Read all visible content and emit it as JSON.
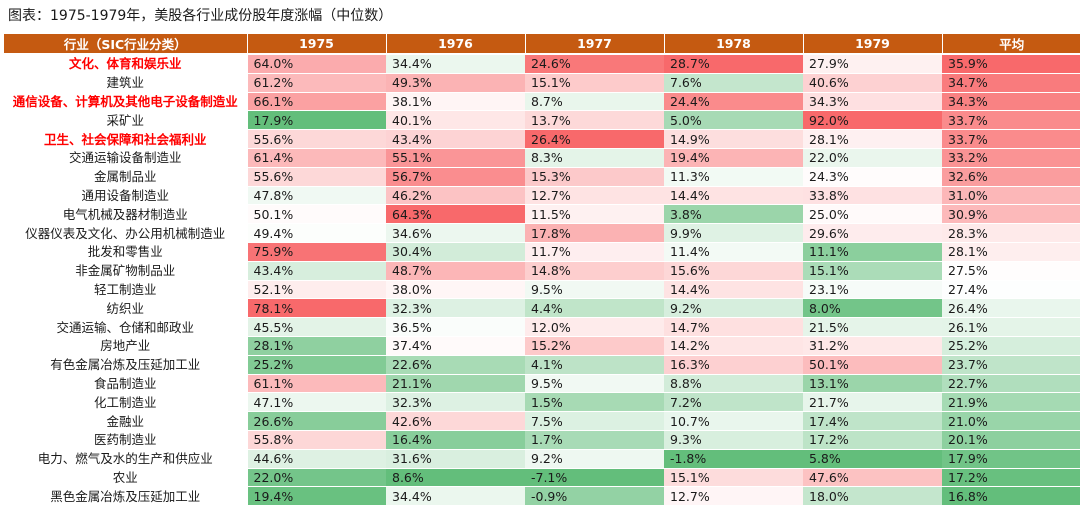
{
  "title": "图表：1975-1979年，美股各行业成份股年度涨幅（中位数）",
  "header": {
    "columns": [
      "行业（SIC行业分类）",
      "1975",
      "1976",
      "1977",
      "1978",
      "1979",
      "平均"
    ]
  },
  "colors": {
    "header_bg": "#c55a11",
    "highlight_text": "#ff0000",
    "high_cell": "#f8696b",
    "low_cell": "#63be7b"
  },
  "rows": [
    {
      "industry": "文化、体育和娱乐业",
      "highlight": true,
      "cells": [
        {
          "v": 64.0,
          "t": "64.0%"
        },
        {
          "v": 34.4,
          "t": "34.4%"
        },
        {
          "v": 24.6,
          "t": "24.6%"
        },
        {
          "v": 28.7,
          "t": "28.7%"
        },
        {
          "v": 27.9,
          "t": "27.9%"
        },
        {
          "v": 35.9,
          "t": "35.9%"
        }
      ]
    },
    {
      "industry": "建筑业",
      "highlight": false,
      "cells": [
        {
          "v": 61.2,
          "t": "61.2%"
        },
        {
          "v": 49.3,
          "t": "49.3%"
        },
        {
          "v": 15.1,
          "t": "15.1%"
        },
        {
          "v": 7.6,
          "t": "7.6%"
        },
        {
          "v": 40.6,
          "t": "40.6%"
        },
        {
          "v": 34.7,
          "t": "34.7%"
        }
      ]
    },
    {
      "industry": "通信设备、计算机及其他电子设备制造业",
      "highlight": true,
      "cells": [
        {
          "v": 66.1,
          "t": "66.1%"
        },
        {
          "v": 38.1,
          "t": "38.1%"
        },
        {
          "v": 8.7,
          "t": "8.7%"
        },
        {
          "v": 24.4,
          "t": "24.4%"
        },
        {
          "v": 34.3,
          "t": "34.3%"
        },
        {
          "v": 34.3,
          "t": "34.3%"
        }
      ]
    },
    {
      "industry": "采矿业",
      "highlight": false,
      "cells": [
        {
          "v": 17.9,
          "t": "17.9%"
        },
        {
          "v": 40.1,
          "t": "40.1%"
        },
        {
          "v": 13.7,
          "t": "13.7%"
        },
        {
          "v": 5.0,
          "t": "5.0%"
        },
        {
          "v": 92.0,
          "t": "92.0%"
        },
        {
          "v": 33.7,
          "t": "33.7%"
        }
      ]
    },
    {
      "industry": "卫生、社会保障和社会福利业",
      "highlight": true,
      "cells": [
        {
          "v": 55.6,
          "t": "55.6%"
        },
        {
          "v": 43.4,
          "t": "43.4%"
        },
        {
          "v": 26.4,
          "t": "26.4%"
        },
        {
          "v": 14.9,
          "t": "14.9%"
        },
        {
          "v": 28.1,
          "t": "28.1%"
        },
        {
          "v": 33.7,
          "t": "33.7%"
        }
      ]
    },
    {
      "industry": "交通运输设备制造业",
      "highlight": false,
      "cells": [
        {
          "v": 61.4,
          "t": "61.4%"
        },
        {
          "v": 55.1,
          "t": "55.1%"
        },
        {
          "v": 8.3,
          "t": "8.3%"
        },
        {
          "v": 19.4,
          "t": "19.4%"
        },
        {
          "v": 22.0,
          "t": "22.0%"
        },
        {
          "v": 33.2,
          "t": "33.2%"
        }
      ]
    },
    {
      "industry": "金属制品业",
      "highlight": false,
      "cells": [
        {
          "v": 55.6,
          "t": "55.6%"
        },
        {
          "v": 56.7,
          "t": "56.7%"
        },
        {
          "v": 15.3,
          "t": "15.3%"
        },
        {
          "v": 11.3,
          "t": "11.3%"
        },
        {
          "v": 24.3,
          "t": "24.3%"
        },
        {
          "v": 32.6,
          "t": "32.6%"
        }
      ]
    },
    {
      "industry": "通用设备制造业",
      "highlight": false,
      "cells": [
        {
          "v": 47.8,
          "t": "47.8%"
        },
        {
          "v": 46.2,
          "t": "46.2%"
        },
        {
          "v": 12.7,
          "t": "12.7%"
        },
        {
          "v": 14.4,
          "t": "14.4%"
        },
        {
          "v": 33.8,
          "t": "33.8%"
        },
        {
          "v": 31.0,
          "t": "31.0%"
        }
      ]
    },
    {
      "industry": "电气机械及器材制造业",
      "highlight": false,
      "cells": [
        {
          "v": 50.1,
          "t": "50.1%"
        },
        {
          "v": 64.3,
          "t": "64.3%"
        },
        {
          "v": 11.5,
          "t": "11.5%"
        },
        {
          "v": 3.8,
          "t": "3.8%"
        },
        {
          "v": 25.0,
          "t": "25.0%"
        },
        {
          "v": 30.9,
          "t": "30.9%"
        }
      ]
    },
    {
      "industry": "仪器仪表及文化、办公用机械制造业",
      "highlight": false,
      "cells": [
        {
          "v": 49.4,
          "t": "49.4%"
        },
        {
          "v": 34.6,
          "t": "34.6%"
        },
        {
          "v": 17.8,
          "t": "17.8%"
        },
        {
          "v": 9.9,
          "t": "9.9%"
        },
        {
          "v": 29.6,
          "t": "29.6%"
        },
        {
          "v": 28.3,
          "t": "28.3%"
        }
      ]
    },
    {
      "industry": "批发和零售业",
      "highlight": false,
      "cells": [
        {
          "v": 75.9,
          "t": "75.9%"
        },
        {
          "v": 30.4,
          "t": "30.4%"
        },
        {
          "v": 11.7,
          "t": "11.7%"
        },
        {
          "v": 11.4,
          "t": "11.4%"
        },
        {
          "v": 11.1,
          "t": "11.1%"
        },
        {
          "v": 28.1,
          "t": "28.1%"
        }
      ]
    },
    {
      "industry": "非金属矿物制品业",
      "highlight": false,
      "cells": [
        {
          "v": 43.4,
          "t": "43.4%"
        },
        {
          "v": 48.7,
          "t": "48.7%"
        },
        {
          "v": 14.8,
          "t": "14.8%"
        },
        {
          "v": 15.6,
          "t": "15.6%"
        },
        {
          "v": 15.1,
          "t": "15.1%"
        },
        {
          "v": 27.5,
          "t": "27.5%"
        }
      ]
    },
    {
      "industry": "轻工制造业",
      "highlight": false,
      "cells": [
        {
          "v": 52.1,
          "t": "52.1%"
        },
        {
          "v": 38.0,
          "t": "38.0%"
        },
        {
          "v": 9.5,
          "t": "9.5%"
        },
        {
          "v": 14.4,
          "t": "14.4%"
        },
        {
          "v": 23.1,
          "t": "23.1%"
        },
        {
          "v": 27.4,
          "t": "27.4%"
        }
      ]
    },
    {
      "industry": "纺织业",
      "highlight": false,
      "cells": [
        {
          "v": 78.1,
          "t": "78.1%"
        },
        {
          "v": 32.3,
          "t": "32.3%"
        },
        {
          "v": 4.4,
          "t": "4.4%"
        },
        {
          "v": 9.2,
          "t": "9.2%"
        },
        {
          "v": 8.0,
          "t": "8.0%"
        },
        {
          "v": 26.4,
          "t": "26.4%"
        }
      ]
    },
    {
      "industry": "交通运输、仓储和邮政业",
      "highlight": false,
      "cells": [
        {
          "v": 45.5,
          "t": "45.5%"
        },
        {
          "v": 36.5,
          "t": "36.5%"
        },
        {
          "v": 12.0,
          "t": "12.0%"
        },
        {
          "v": 14.7,
          "t": "14.7%"
        },
        {
          "v": 21.5,
          "t": "21.5%"
        },
        {
          "v": 26.1,
          "t": "26.1%"
        }
      ]
    },
    {
      "industry": "房地产业",
      "highlight": false,
      "cells": [
        {
          "v": 28.1,
          "t": "28.1%"
        },
        {
          "v": 37.4,
          "t": "37.4%"
        },
        {
          "v": 15.2,
          "t": "15.2%"
        },
        {
          "v": 14.2,
          "t": "14.2%"
        },
        {
          "v": 31.2,
          "t": "31.2%"
        },
        {
          "v": 25.2,
          "t": "25.2%"
        }
      ]
    },
    {
      "industry": "有色金属冶炼及压延加工业",
      "highlight": false,
      "cells": [
        {
          "v": 25.2,
          "t": "25.2%"
        },
        {
          "v": 22.6,
          "t": "22.6%"
        },
        {
          "v": 4.1,
          "t": "4.1%"
        },
        {
          "v": 16.3,
          "t": "16.3%"
        },
        {
          "v": 50.1,
          "t": "50.1%"
        },
        {
          "v": 23.7,
          "t": "23.7%"
        }
      ]
    },
    {
      "industry": "食品制造业",
      "highlight": false,
      "cells": [
        {
          "v": 61.1,
          "t": "61.1%"
        },
        {
          "v": 21.1,
          "t": "21.1%"
        },
        {
          "v": 9.5,
          "t": "9.5%"
        },
        {
          "v": 8.8,
          "t": "8.8%"
        },
        {
          "v": 13.1,
          "t": "13.1%"
        },
        {
          "v": 22.7,
          "t": "22.7%"
        }
      ]
    },
    {
      "industry": "化工制造业",
      "highlight": false,
      "cells": [
        {
          "v": 47.1,
          "t": "47.1%"
        },
        {
          "v": 32.3,
          "t": "32.3%"
        },
        {
          "v": 1.5,
          "t": "1.5%"
        },
        {
          "v": 7.2,
          "t": "7.2%"
        },
        {
          "v": 21.7,
          "t": "21.7%"
        },
        {
          "v": 21.9,
          "t": "21.9%"
        }
      ]
    },
    {
      "industry": "金融业",
      "highlight": false,
      "cells": [
        {
          "v": 26.6,
          "t": "26.6%"
        },
        {
          "v": 42.6,
          "t": "42.6%"
        },
        {
          "v": 7.5,
          "t": "7.5%"
        },
        {
          "v": 10.7,
          "t": "10.7%"
        },
        {
          "v": 17.4,
          "t": "17.4%"
        },
        {
          "v": 21.0,
          "t": "21.0%"
        }
      ]
    },
    {
      "industry": "医药制造业",
      "highlight": false,
      "cells": [
        {
          "v": 55.8,
          "t": "55.8%"
        },
        {
          "v": 16.4,
          "t": "16.4%"
        },
        {
          "v": 1.7,
          "t": "1.7%"
        },
        {
          "v": 9.3,
          "t": "9.3%"
        },
        {
          "v": 17.2,
          "t": "17.2%"
        },
        {
          "v": 20.1,
          "t": "20.1%"
        }
      ]
    },
    {
      "industry": "电力、燃气及水的生产和供应业",
      "highlight": false,
      "cells": [
        {
          "v": 44.6,
          "t": "44.6%"
        },
        {
          "v": 31.6,
          "t": "31.6%"
        },
        {
          "v": 9.2,
          "t": "9.2%"
        },
        {
          "v": -1.8,
          "t": "-1.8%"
        },
        {
          "v": 5.8,
          "t": "5.8%"
        },
        {
          "v": 17.9,
          "t": "17.9%"
        }
      ]
    },
    {
      "industry": "农业",
      "highlight": false,
      "cells": [
        {
          "v": 22.0,
          "t": "22.0%"
        },
        {
          "v": 8.6,
          "t": "8.6%"
        },
        {
          "v": -7.1,
          "t": "-7.1%"
        },
        {
          "v": 15.1,
          "t": "15.1%"
        },
        {
          "v": 47.6,
          "t": "47.6%"
        },
        {
          "v": 17.2,
          "t": "17.2%"
        }
      ]
    },
    {
      "industry": "黑色金属冶炼及压延加工业",
      "highlight": false,
      "cells": [
        {
          "v": 19.4,
          "t": "19.4%"
        },
        {
          "v": 34.4,
          "t": "34.4%"
        },
        {
          "v": -0.9,
          "t": "-0.9%"
        },
        {
          "v": 12.7,
          "t": "12.7%"
        },
        {
          "v": 18.0,
          "t": "18.0%"
        },
        {
          "v": 16.8,
          "t": "16.8%"
        }
      ]
    }
  ]
}
